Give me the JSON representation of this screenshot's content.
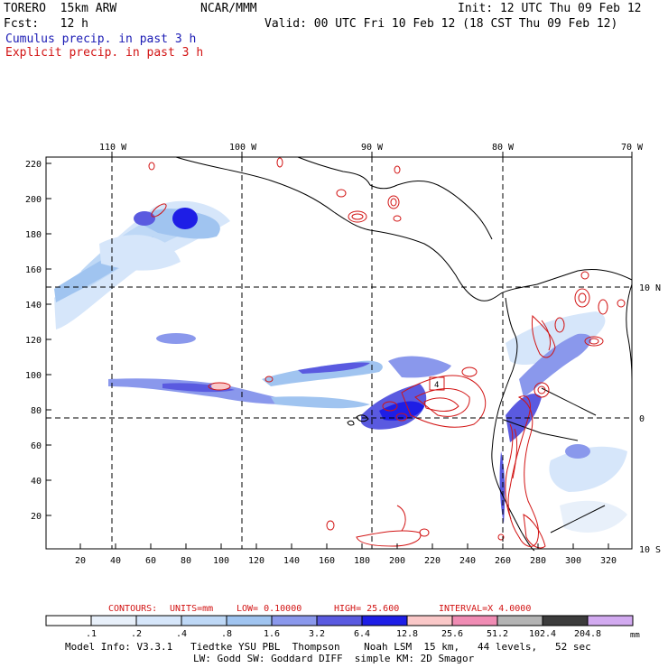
{
  "header": {
    "model": "TORERO  15km ARW",
    "org": "NCAR/MMM",
    "init": "Init: 12 UTC Thu 09 Feb 12",
    "fcst": "Fcst:   12 h",
    "valid": "Valid: 00 UTC Fri 10 Feb 12 (18 CST Thu 09 Feb 12)",
    "legend_cumulus": "Cumulus precip. in past 3 h",
    "legend_explicit": "Explicit precip. in past 3 h"
  },
  "map": {
    "lon_labels": [
      "110 W",
      "100 W",
      "90 W",
      "80 W",
      "70 W"
    ],
    "lat_labels": [
      "10 N",
      "0",
      "10 S"
    ],
    "y_ticks": [
      "220",
      "200",
      "180",
      "160",
      "140",
      "120",
      "100",
      "80",
      "60",
      "40",
      "20"
    ],
    "x_ticks": [
      "20",
      "40",
      "60",
      "80",
      "100",
      "120",
      "140",
      "160",
      "180",
      "200",
      "220",
      "240",
      "260",
      "280",
      "300",
      "320"
    ],
    "annotation": "4"
  },
  "contours": {
    "label": "CONTOURS:",
    "units": "UNITS=mm",
    "low": "LOW= 0.10000",
    "high": "HIGH=  25.600",
    "interval": "INTERVAL=X  4.0000"
  },
  "colorbar": {
    "unit": "mm",
    "labels": [
      ".1",
      ".2",
      ".4",
      ".8",
      "1.6",
      "3.2",
      "6.4",
      "12.8",
      "25.6",
      "51.2",
      "102.4",
      "204.8"
    ],
    "colors": [
      "#ffffff",
      "#e8f0fa",
      "#d6e6fa",
      "#bed8f6",
      "#a0c4f0",
      "#8a98ec",
      "#5a5ae0",
      "#1e1ee6",
      "#fac8c8",
      "#f08cb4",
      "#b4b4b4",
      "#3c3c3c",
      "#d2aaf0"
    ]
  },
  "footer": {
    "line1": "Model Info: V3.3.1   Tiedtke YSU PBL  Thompson    Noah LSM  15 km,   44 levels,   52 sec",
    "line2": "LW: Godd SW: Goddard DIFF  simple KM: 2D Smagor"
  }
}
